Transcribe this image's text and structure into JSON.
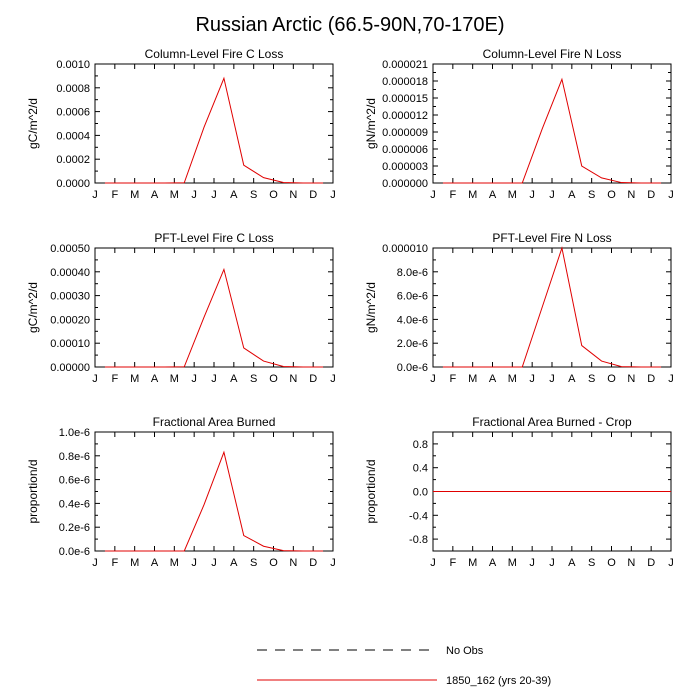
{
  "figure": {
    "title": "Russian Arctic (66.5-90N,70-170E)"
  },
  "months": [
    "J",
    "F",
    "M",
    "A",
    "M",
    "J",
    "J",
    "A",
    "S",
    "O",
    "N",
    "D",
    "J"
  ],
  "chart_data": [
    {
      "type": "line",
      "title": "Column-Level Fire C Loss",
      "ylabel": "gC/m^2/d",
      "ylim": [
        0,
        0.001
      ],
      "yticks": [
        0,
        0.0002,
        0.0004,
        0.0006,
        0.0008,
        0.001
      ],
      "yticklabels": [
        "0.0000",
        "0.0002",
        "0.0004",
        "0.0006",
        "0.0008",
        "0.0010"
      ],
      "series": [
        {
          "name": "1850_162 (yrs 20-39)",
          "color": "#e00000",
          "x": [
            0.5,
            1.5,
            2.5,
            3.5,
            4.5,
            5.5,
            6.5,
            7.5,
            8.5,
            9.5,
            10.5,
            11.5
          ],
          "values": [
            0,
            0,
            0,
            0,
            2e-06,
            0.00047,
            0.00088,
            0.00015,
            4.5e-05,
            4e-06,
            0,
            0
          ]
        }
      ]
    },
    {
      "type": "line",
      "title": "Column-Level Fire N Loss",
      "ylabel": "gN/m^2/d",
      "ylim": [
        0,
        2.1e-05
      ],
      "yticks": [
        0,
        3e-06,
        6e-06,
        9e-06,
        1.2e-05,
        1.5e-05,
        1.8e-05,
        2.1e-05
      ],
      "yticklabels": [
        "0.000000",
        "0.000003",
        "0.000006",
        "0.000009",
        "0.000012",
        "0.000015",
        "0.000018",
        "0.000021"
      ],
      "series": [
        {
          "name": "1850_162 (yrs 20-39)",
          "color": "#e00000",
          "x": [
            0.5,
            1.5,
            2.5,
            3.5,
            4.5,
            5.5,
            6.5,
            7.5,
            8.5,
            9.5,
            10.5,
            11.5
          ],
          "values": [
            0,
            0,
            0,
            0,
            0,
            9.5e-06,
            1.83e-05,
            3e-06,
            9e-07,
            8e-08,
            0,
            0
          ]
        }
      ]
    },
    {
      "type": "line",
      "title": "PFT-Level Fire C Loss",
      "ylabel": "gC/m^2/d",
      "ylim": [
        0,
        0.0005
      ],
      "yticks": [
        0,
        0.0001,
        0.0002,
        0.0003,
        0.0004,
        0.0005
      ],
      "yticklabels": [
        "0.00000",
        "0.00010",
        "0.00020",
        "0.00030",
        "0.00040",
        "0.00050"
      ],
      "series": [
        {
          "name": "1850_162 (yrs 20-39)",
          "color": "#e00000",
          "x": [
            0.5,
            1.5,
            2.5,
            3.5,
            4.5,
            5.5,
            6.5,
            7.5,
            8.5,
            9.5,
            10.5,
            11.5
          ],
          "values": [
            0,
            0,
            0,
            0,
            1e-06,
            0.00021,
            0.00041,
            8e-05,
            2.5e-05,
            2e-06,
            0,
            0
          ]
        }
      ]
    },
    {
      "type": "line",
      "title": "PFT-Level Fire N Loss",
      "ylabel": "gN/m^2/d",
      "ylim": [
        0,
        1e-05
      ],
      "yticks": [
        0,
        2e-06,
        4e-06,
        6e-06,
        8e-06,
        1e-05
      ],
      "yticklabels": [
        "0.0e-6",
        "2.0e-6",
        "4.0e-6",
        "6.0e-6",
        "8.0e-6",
        "0.000010"
      ],
      "series": [
        {
          "name": "1850_162 (yrs 20-39)",
          "color": "#e00000",
          "x": [
            0.5,
            1.5,
            2.5,
            3.5,
            4.5,
            5.5,
            6.5,
            7.5,
            8.5,
            9.5,
            10.5,
            11.5
          ],
          "values": [
            0,
            0,
            0,
            0,
            0,
            5e-06,
            1e-05,
            1.8e-06,
            5e-07,
            3e-08,
            0,
            0
          ]
        }
      ]
    },
    {
      "type": "line",
      "title": "Fractional Area Burned",
      "ylabel": "proportion/d",
      "ylim": [
        0,
        1e-06
      ],
      "yticks": [
        0,
        2e-07,
        4e-07,
        6e-07,
        8e-07,
        1e-06
      ],
      "yticklabels": [
        "0.0e-6",
        "0.2e-6",
        "0.4e-6",
        "0.6e-6",
        "0.8e-6",
        "1.0e-6"
      ],
      "series": [
        {
          "name": "1850_162 (yrs 20-39)",
          "color": "#e00000",
          "x": [
            0.5,
            1.5,
            2.5,
            3.5,
            4.5,
            5.5,
            6.5,
            7.5,
            8.5,
            9.5,
            10.5,
            11.5
          ],
          "values": [
            0,
            0,
            0,
            0,
            0,
            3.9e-07,
            8.3e-07,
            1.3e-07,
            4e-08,
            3e-09,
            0,
            0
          ]
        }
      ]
    },
    {
      "type": "line",
      "title": "Fractional Area Burned - Crop",
      "ylabel": "proportion/d",
      "ylim": [
        -1,
        1
      ],
      "yticks": [
        -0.8,
        -0.4,
        0,
        0.4,
        0.8
      ],
      "yticklabels": [
        "-0.8",
        "-0.4",
        "0.0",
        "0.4",
        "0.8"
      ],
      "series": [
        {
          "name": "1850_162 (yrs 20-39)",
          "color": "#e00000",
          "x": [
            0,
            12
          ],
          "values": [
            0,
            0
          ]
        }
      ]
    }
  ],
  "legend": {
    "entries": [
      {
        "label": "No Obs",
        "style": "dashed",
        "color": "#000000"
      },
      {
        "label": "1850_162 (yrs 20-39)",
        "style": "solid",
        "color": "#e00000"
      }
    ]
  }
}
